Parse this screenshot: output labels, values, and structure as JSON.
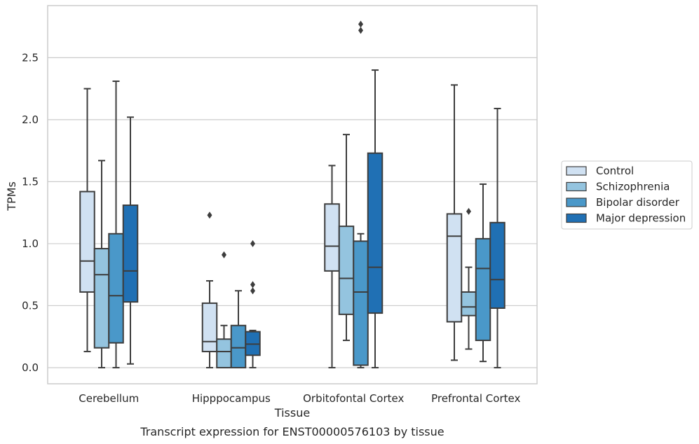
{
  "caption": "Transcript expression for ENST00000576103 by tissue",
  "chart_data": {
    "type": "box",
    "title": "",
    "xlabel": "Tissue",
    "ylabel": "TPMs",
    "ylim": [
      -0.13,
      2.92
    ],
    "yticks": [
      0.0,
      0.5,
      1.0,
      1.5,
      2.0,
      2.5
    ],
    "ytick_labels": [
      "0.0",
      "0.5",
      "1.0",
      "1.5",
      "2.0",
      "2.5"
    ],
    "grid": "horizontal",
    "legend_position": "right",
    "categories": [
      "Cerebellum",
      "Hipppocampus",
      "Orbitofontal Cortex",
      "Prefrontal Cortex"
    ],
    "series": [
      {
        "name": "Control",
        "color": "#d0e1f2",
        "boxes": [
          {
            "whislo": 0.13,
            "q1": 0.61,
            "med": 0.86,
            "q3": 1.42,
            "whishi": 2.25,
            "fliers": []
          },
          {
            "whislo": 0.0,
            "q1": 0.13,
            "med": 0.21,
            "q3": 0.52,
            "whishi": 0.7,
            "fliers": [
              1.23
            ]
          },
          {
            "whislo": 0.0,
            "q1": 0.78,
            "med": 0.98,
            "q3": 1.32,
            "whishi": 1.63,
            "fliers": []
          },
          {
            "whislo": 0.06,
            "q1": 0.37,
            "med": 1.06,
            "q3": 1.24,
            "whishi": 2.28,
            "fliers": []
          }
        ]
      },
      {
        "name": "Schizophrenia",
        "color": "#94c4df",
        "boxes": [
          {
            "whislo": 0.0,
            "q1": 0.16,
            "med": 0.75,
            "q3": 0.96,
            "whishi": 1.67,
            "fliers": []
          },
          {
            "whislo": 0.0,
            "q1": 0.0,
            "med": 0.13,
            "q3": 0.23,
            "whishi": 0.34,
            "fliers": [
              0.91
            ]
          },
          {
            "whislo": 0.22,
            "q1": 0.43,
            "med": 0.72,
            "q3": 1.14,
            "whishi": 1.88,
            "fliers": []
          },
          {
            "whislo": 0.15,
            "q1": 0.42,
            "med": 0.49,
            "q3": 0.61,
            "whishi": 0.81,
            "fliers": [
              1.26
            ]
          }
        ]
      },
      {
        "name": "Bipolar disorder",
        "color": "#4a98c9",
        "boxes": [
          {
            "whislo": 0.0,
            "q1": 0.2,
            "med": 0.58,
            "q3": 1.08,
            "whishi": 2.31,
            "fliers": []
          },
          {
            "whislo": 0.0,
            "q1": 0.0,
            "med": 0.16,
            "q3": 0.34,
            "whishi": 0.62,
            "fliers": []
          },
          {
            "whislo": 0.0,
            "q1": 0.02,
            "med": 0.61,
            "q3": 1.02,
            "whishi": 1.08,
            "fliers": [
              2.72,
              2.77
            ]
          },
          {
            "whislo": 0.05,
            "q1": 0.22,
            "med": 0.8,
            "q3": 1.04,
            "whishi": 1.48,
            "fliers": []
          }
        ]
      },
      {
        "name": "Major depression",
        "color": "#2070b4",
        "boxes": [
          {
            "whislo": 0.03,
            "q1": 0.53,
            "med": 0.78,
            "q3": 1.31,
            "whishi": 2.02,
            "fliers": []
          },
          {
            "whislo": 0.0,
            "q1": 0.1,
            "med": 0.19,
            "q3": 0.29,
            "whishi": 0.3,
            "fliers": [
              0.62,
              0.67,
              1.0
            ]
          },
          {
            "whislo": 0.0,
            "q1": 0.44,
            "med": 0.81,
            "q3": 1.73,
            "whishi": 2.4,
            "fliers": []
          },
          {
            "whislo": 0.0,
            "q1": 0.48,
            "med": 0.71,
            "q3": 1.17,
            "whishi": 2.09,
            "fliers": []
          }
        ]
      }
    ]
  }
}
